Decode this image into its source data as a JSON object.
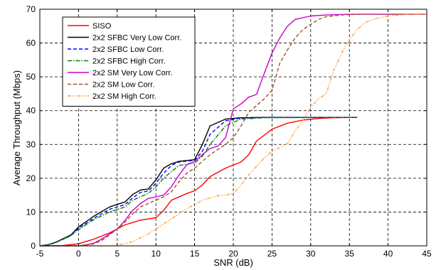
{
  "chart_data": {
    "type": "line",
    "xlabel": "SNR (dB)",
    "ylabel": "Average Throughput (Mbps)",
    "xlim": [
      -5,
      45
    ],
    "ylim": [
      0,
      70
    ],
    "xticks": [
      -5,
      0,
      5,
      10,
      15,
      20,
      25,
      30,
      35,
      40,
      45
    ],
    "yticks": [
      0,
      10,
      20,
      30,
      40,
      50,
      60,
      70
    ],
    "grid": true,
    "legend_position": "top-left",
    "series": [
      {
        "name": "SISO",
        "color": "#ff0000",
        "dash": "solid",
        "points": [
          [
            -5,
            0
          ],
          [
            -2,
            0.1
          ],
          [
            0,
            0.6
          ],
          [
            2,
            2
          ],
          [
            4,
            3.8
          ],
          [
            6,
            6.2
          ],
          [
            8,
            7.6
          ],
          [
            10,
            8.3
          ],
          [
            11,
            10.5
          ],
          [
            12,
            13.5
          ],
          [
            14,
            15.5
          ],
          [
            15,
            16.3
          ],
          [
            16,
            18
          ],
          [
            17,
            20.5
          ],
          [
            19,
            23
          ],
          [
            21,
            24.8
          ],
          [
            22,
            27
          ],
          [
            23,
            31
          ],
          [
            25,
            34.5
          ],
          [
            27,
            36.3
          ],
          [
            29,
            37.2
          ],
          [
            31,
            37.7
          ],
          [
            33,
            37.9
          ],
          [
            36,
            38
          ]
        ]
      },
      {
        "name": "2x2 SFBC Very Low Corr.",
        "color": "#000000",
        "dash": "solid",
        "points": [
          [
            -5,
            0
          ],
          [
            -4,
            0.3
          ],
          [
            -3,
            1
          ],
          [
            -1,
            3.2
          ],
          [
            0,
            5.6
          ],
          [
            2,
            8.8
          ],
          [
            4,
            11.5
          ],
          [
            6,
            13
          ],
          [
            7,
            15.2
          ],
          [
            8,
            16.5
          ],
          [
            9,
            16.8
          ],
          [
            10,
            19.5
          ],
          [
            11,
            23
          ],
          [
            12,
            24.3
          ],
          [
            13,
            25
          ],
          [
            15,
            25.5
          ],
          [
            16,
            30
          ],
          [
            17,
            35.5
          ],
          [
            19,
            37.5
          ],
          [
            21,
            37.9
          ],
          [
            24,
            38
          ],
          [
            36,
            38
          ]
        ]
      },
      {
        "name": "2x2 SFBC Low Corr.",
        "color": "#0000ff",
        "dash": "dash",
        "points": [
          [
            -5,
            0
          ],
          [
            -4,
            0.3
          ],
          [
            -3,
            0.9
          ],
          [
            -1,
            3
          ],
          [
            0,
            5.2
          ],
          [
            2,
            8.2
          ],
          [
            4,
            10.8
          ],
          [
            6,
            12.2
          ],
          [
            7,
            14.2
          ],
          [
            8,
            15.8
          ],
          [
            9,
            16.2
          ],
          [
            10,
            18.5
          ],
          [
            11,
            21.5
          ],
          [
            12,
            23.8
          ],
          [
            13,
            24.8
          ],
          [
            15,
            25.3
          ],
          [
            16,
            28
          ],
          [
            17,
            33
          ],
          [
            19,
            37
          ],
          [
            21,
            37.8
          ],
          [
            24,
            38
          ],
          [
            36,
            38
          ]
        ]
      },
      {
        "name": "2x2 SFBC High Corr.",
        "color": "#008000",
        "dash": "dashdot",
        "points": [
          [
            -5,
            0
          ],
          [
            -4,
            0.3
          ],
          [
            -3,
            0.9
          ],
          [
            -1,
            3
          ],
          [
            0,
            4.8
          ],
          [
            2,
            7.8
          ],
          [
            4,
            10
          ],
          [
            6,
            11.5
          ],
          [
            7,
            13.5
          ],
          [
            8,
            14.5
          ],
          [
            9,
            15.5
          ],
          [
            10,
            17.5
          ],
          [
            11,
            20
          ],
          [
            12,
            22
          ],
          [
            13,
            23.8
          ],
          [
            15,
            24.5
          ],
          [
            16,
            26.5
          ],
          [
            17,
            30
          ],
          [
            19,
            35.5
          ],
          [
            21,
            37.5
          ],
          [
            24,
            37.9
          ],
          [
            36,
            38
          ]
        ]
      },
      {
        "name": "2x2 SM Very Low Corr.",
        "color": "#cc00cc",
        "dash": "solid",
        "points": [
          [
            -5,
            0
          ],
          [
            0,
            0
          ],
          [
            1,
            0.3
          ],
          [
            2,
            0.8
          ],
          [
            3,
            2
          ],
          [
            4,
            3.5
          ],
          [
            5,
            5
          ],
          [
            6,
            7.5
          ],
          [
            7,
            10.5
          ],
          [
            8,
            12.5
          ],
          [
            9,
            14
          ],
          [
            10,
            14.5
          ],
          [
            11,
            15
          ],
          [
            12,
            17.5
          ],
          [
            13,
            21
          ],
          [
            14,
            24
          ],
          [
            15,
            25
          ],
          [
            16,
            27
          ],
          [
            17,
            28.8
          ],
          [
            18,
            29.5
          ],
          [
            19,
            32
          ],
          [
            20,
            40.5
          ],
          [
            21,
            42
          ],
          [
            22,
            44
          ],
          [
            23,
            44.8
          ],
          [
            24,
            51
          ],
          [
            25,
            57
          ],
          [
            26,
            61.5
          ],
          [
            27,
            65
          ],
          [
            28,
            67
          ],
          [
            30,
            68
          ],
          [
            32,
            68.3
          ],
          [
            35,
            68.5
          ],
          [
            45,
            68.5
          ]
        ]
      },
      {
        "name": "2x2 SM Low Corr.",
        "color": "#a0522d",
        "dash": "dash",
        "points": [
          [
            -5,
            0
          ],
          [
            0,
            0
          ],
          [
            1,
            0.2
          ],
          [
            2,
            0.6
          ],
          [
            3,
            1.6
          ],
          [
            4,
            3.2
          ],
          [
            5,
            5
          ],
          [
            6,
            7
          ],
          [
            7,
            9.5
          ],
          [
            8,
            11.5
          ],
          [
            9,
            12.5
          ],
          [
            10,
            13.5
          ],
          [
            11,
            14.5
          ],
          [
            12,
            16
          ],
          [
            13,
            19
          ],
          [
            14,
            21.5
          ],
          [
            15,
            23
          ],
          [
            16,
            25
          ],
          [
            17,
            27
          ],
          [
            18,
            28.5
          ],
          [
            19,
            30
          ],
          [
            20,
            32
          ],
          [
            21,
            35.5
          ],
          [
            22,
            39.5
          ],
          [
            23,
            41.5
          ],
          [
            24,
            43.5
          ],
          [
            25,
            46
          ],
          [
            26,
            54
          ],
          [
            27,
            58
          ],
          [
            28,
            61.5
          ],
          [
            29,
            64
          ],
          [
            30,
            65.5
          ],
          [
            31,
            67
          ],
          [
            32,
            67.8
          ],
          [
            34,
            68.3
          ],
          [
            36,
            68.5
          ],
          [
            45,
            68.5
          ]
        ]
      },
      {
        "name": "2x2 SM High Corr.",
        "color": "#ffa040",
        "dash": "dashdotdot",
        "points": [
          [
            -5,
            0
          ],
          [
            4,
            0
          ],
          [
            5,
            0.2
          ],
          [
            6,
            0.6
          ],
          [
            7,
            1.3
          ],
          [
            8,
            2.4
          ],
          [
            9,
            3.5
          ],
          [
            10,
            5
          ],
          [
            11,
            6.5
          ],
          [
            12,
            8
          ],
          [
            13,
            9.5
          ],
          [
            14,
            11
          ],
          [
            15,
            12.2
          ],
          [
            16,
            13.5
          ],
          [
            17,
            14.2
          ],
          [
            18,
            14.8
          ],
          [
            19,
            15
          ],
          [
            20,
            15.5
          ],
          [
            21,
            18
          ],
          [
            22,
            21
          ],
          [
            23,
            23.5
          ],
          [
            24,
            26
          ],
          [
            25,
            28
          ],
          [
            26,
            29
          ],
          [
            27,
            30.2
          ],
          [
            28,
            34
          ],
          [
            29,
            37
          ],
          [
            30,
            41
          ],
          [
            31,
            43.5
          ],
          [
            32,
            45
          ],
          [
            33,
            52
          ],
          [
            34,
            57
          ],
          [
            35,
            61
          ],
          [
            36,
            64
          ],
          [
            37,
            66
          ],
          [
            38,
            67
          ],
          [
            40,
            68
          ],
          [
            42,
            68.4
          ],
          [
            45,
            68.5
          ]
        ]
      }
    ]
  }
}
